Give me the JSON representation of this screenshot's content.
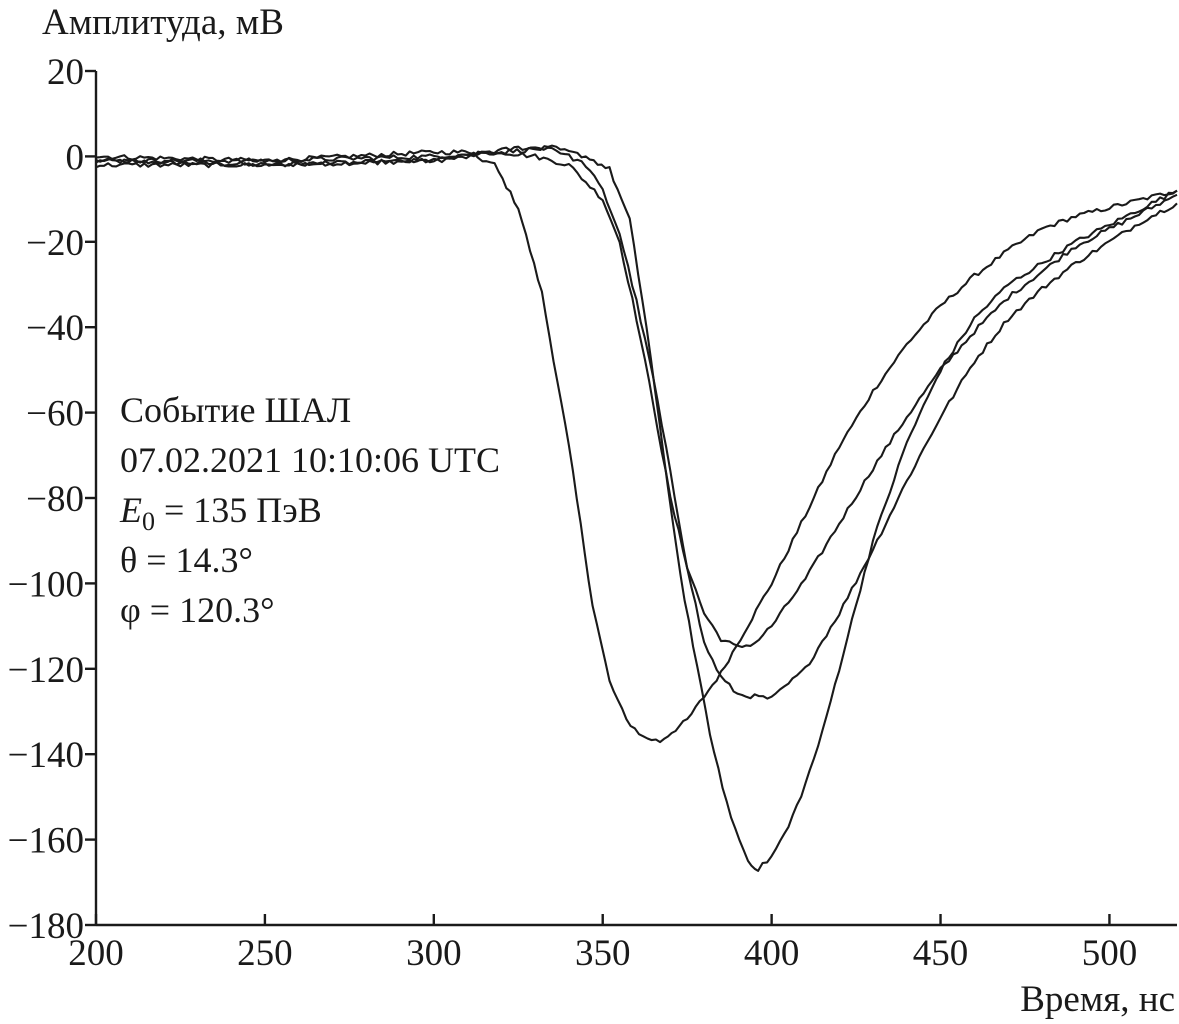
{
  "chart_data": {
    "type": "line",
    "ylabel": "Амплитуда, мВ",
    "xlabel": "Время, нс",
    "xlim": [
      200,
      520
    ],
    "ylim": [
      -180,
      20
    ],
    "x_ticks": [
      200,
      250,
      300,
      350,
      400,
      450,
      500
    ],
    "y_ticks": [
      20,
      0,
      -20,
      -40,
      -60,
      -80,
      -100,
      -120,
      -140,
      -160,
      -180
    ],
    "x_tick_labels": [
      "200",
      "250",
      "300",
      "350",
      "400",
      "450",
      "500"
    ],
    "y_tick_labels": [
      "20",
      "0",
      "−20",
      "−40",
      "−60",
      "−80",
      "−100",
      "−120",
      "−140",
      "−160",
      "−180"
    ],
    "grid": false,
    "annotation": {
      "line1": "Событие ШАЛ",
      "line2": "07.02.2021 10:10:06 UTC",
      "e0_symbol": "E",
      "e0_subscript": "0",
      "e0_rest": " = 135 ПэВ",
      "theta": "θ = 14.3°",
      "phi": "φ = 120.3°"
    },
    "series": [
      {
        "x": [
          200,
          250,
          300,
          312,
          318,
          325,
          332,
          340,
          347,
          352,
          357,
          362,
          367,
          375,
          385,
          400,
          410,
          420,
          430,
          440,
          450,
          460,
          470,
          480,
          490,
          500,
          510,
          520
        ],
        "values": [
          -1,
          -2,
          -1,
          0,
          -2,
          -12,
          -32,
          -68,
          -105,
          -123,
          -132,
          -136,
          -137,
          -132,
          -121,
          -100,
          -84,
          -68,
          -55,
          -44,
          -35,
          -28,
          -22,
          -17,
          -14,
          -12,
          -10,
          -8
        ]
      },
      {
        "x": [
          200,
          250,
          300,
          320,
          330,
          340,
          350,
          355,
          360,
          365,
          370,
          375,
          380,
          385,
          390,
          395,
          400,
          410,
          420,
          430,
          440,
          450,
          460,
          470,
          480,
          490,
          500,
          510,
          520
        ],
        "values": [
          0,
          -1,
          1,
          1,
          0,
          -2,
          -10,
          -20,
          -38,
          -58,
          -80,
          -96,
          -107,
          -113,
          -115,
          -114,
          -110,
          -99,
          -86,
          -73,
          -61,
          -50,
          -41,
          -33,
          -27,
          -21,
          -17,
          -13,
          -9
        ]
      },
      {
        "x": [
          200,
          250,
          300,
          325,
          335,
          345,
          350,
          355,
          360,
          365,
          370,
          375,
          380,
          385,
          390,
          400,
          410,
          420,
          430,
          440,
          450,
          460,
          470,
          480,
          490,
          500,
          510,
          520
        ],
        "values": [
          -2,
          -2,
          -1,
          2,
          2,
          -2,
          -8,
          -18,
          -34,
          -52,
          -74,
          -96,
          -114,
          -122,
          -126,
          -127,
          -120,
          -107,
          -92,
          -76,
          -61,
          -48,
          -38,
          -31,
          -25,
          -20,
          -15,
          -11
        ]
      },
      {
        "x": [
          200,
          250,
          300,
          320,
          335,
          345,
          352,
          358,
          363,
          368,
          373,
          378,
          383,
          388,
          393,
          396,
          400,
          405,
          410,
          415,
          420,
          425,
          430,
          440,
          450,
          460,
          470,
          480,
          490,
          500,
          510,
          520
        ],
        "values": [
          -1,
          -1,
          0,
          1,
          2,
          0,
          -3,
          -15,
          -40,
          -70,
          -98,
          -120,
          -140,
          -155,
          -165,
          -167,
          -164,
          -157,
          -147,
          -135,
          -120,
          -105,
          -90,
          -67,
          -50,
          -38,
          -30,
          -25,
          -20,
          -16,
          -12,
          -8
        ]
      }
    ]
  }
}
